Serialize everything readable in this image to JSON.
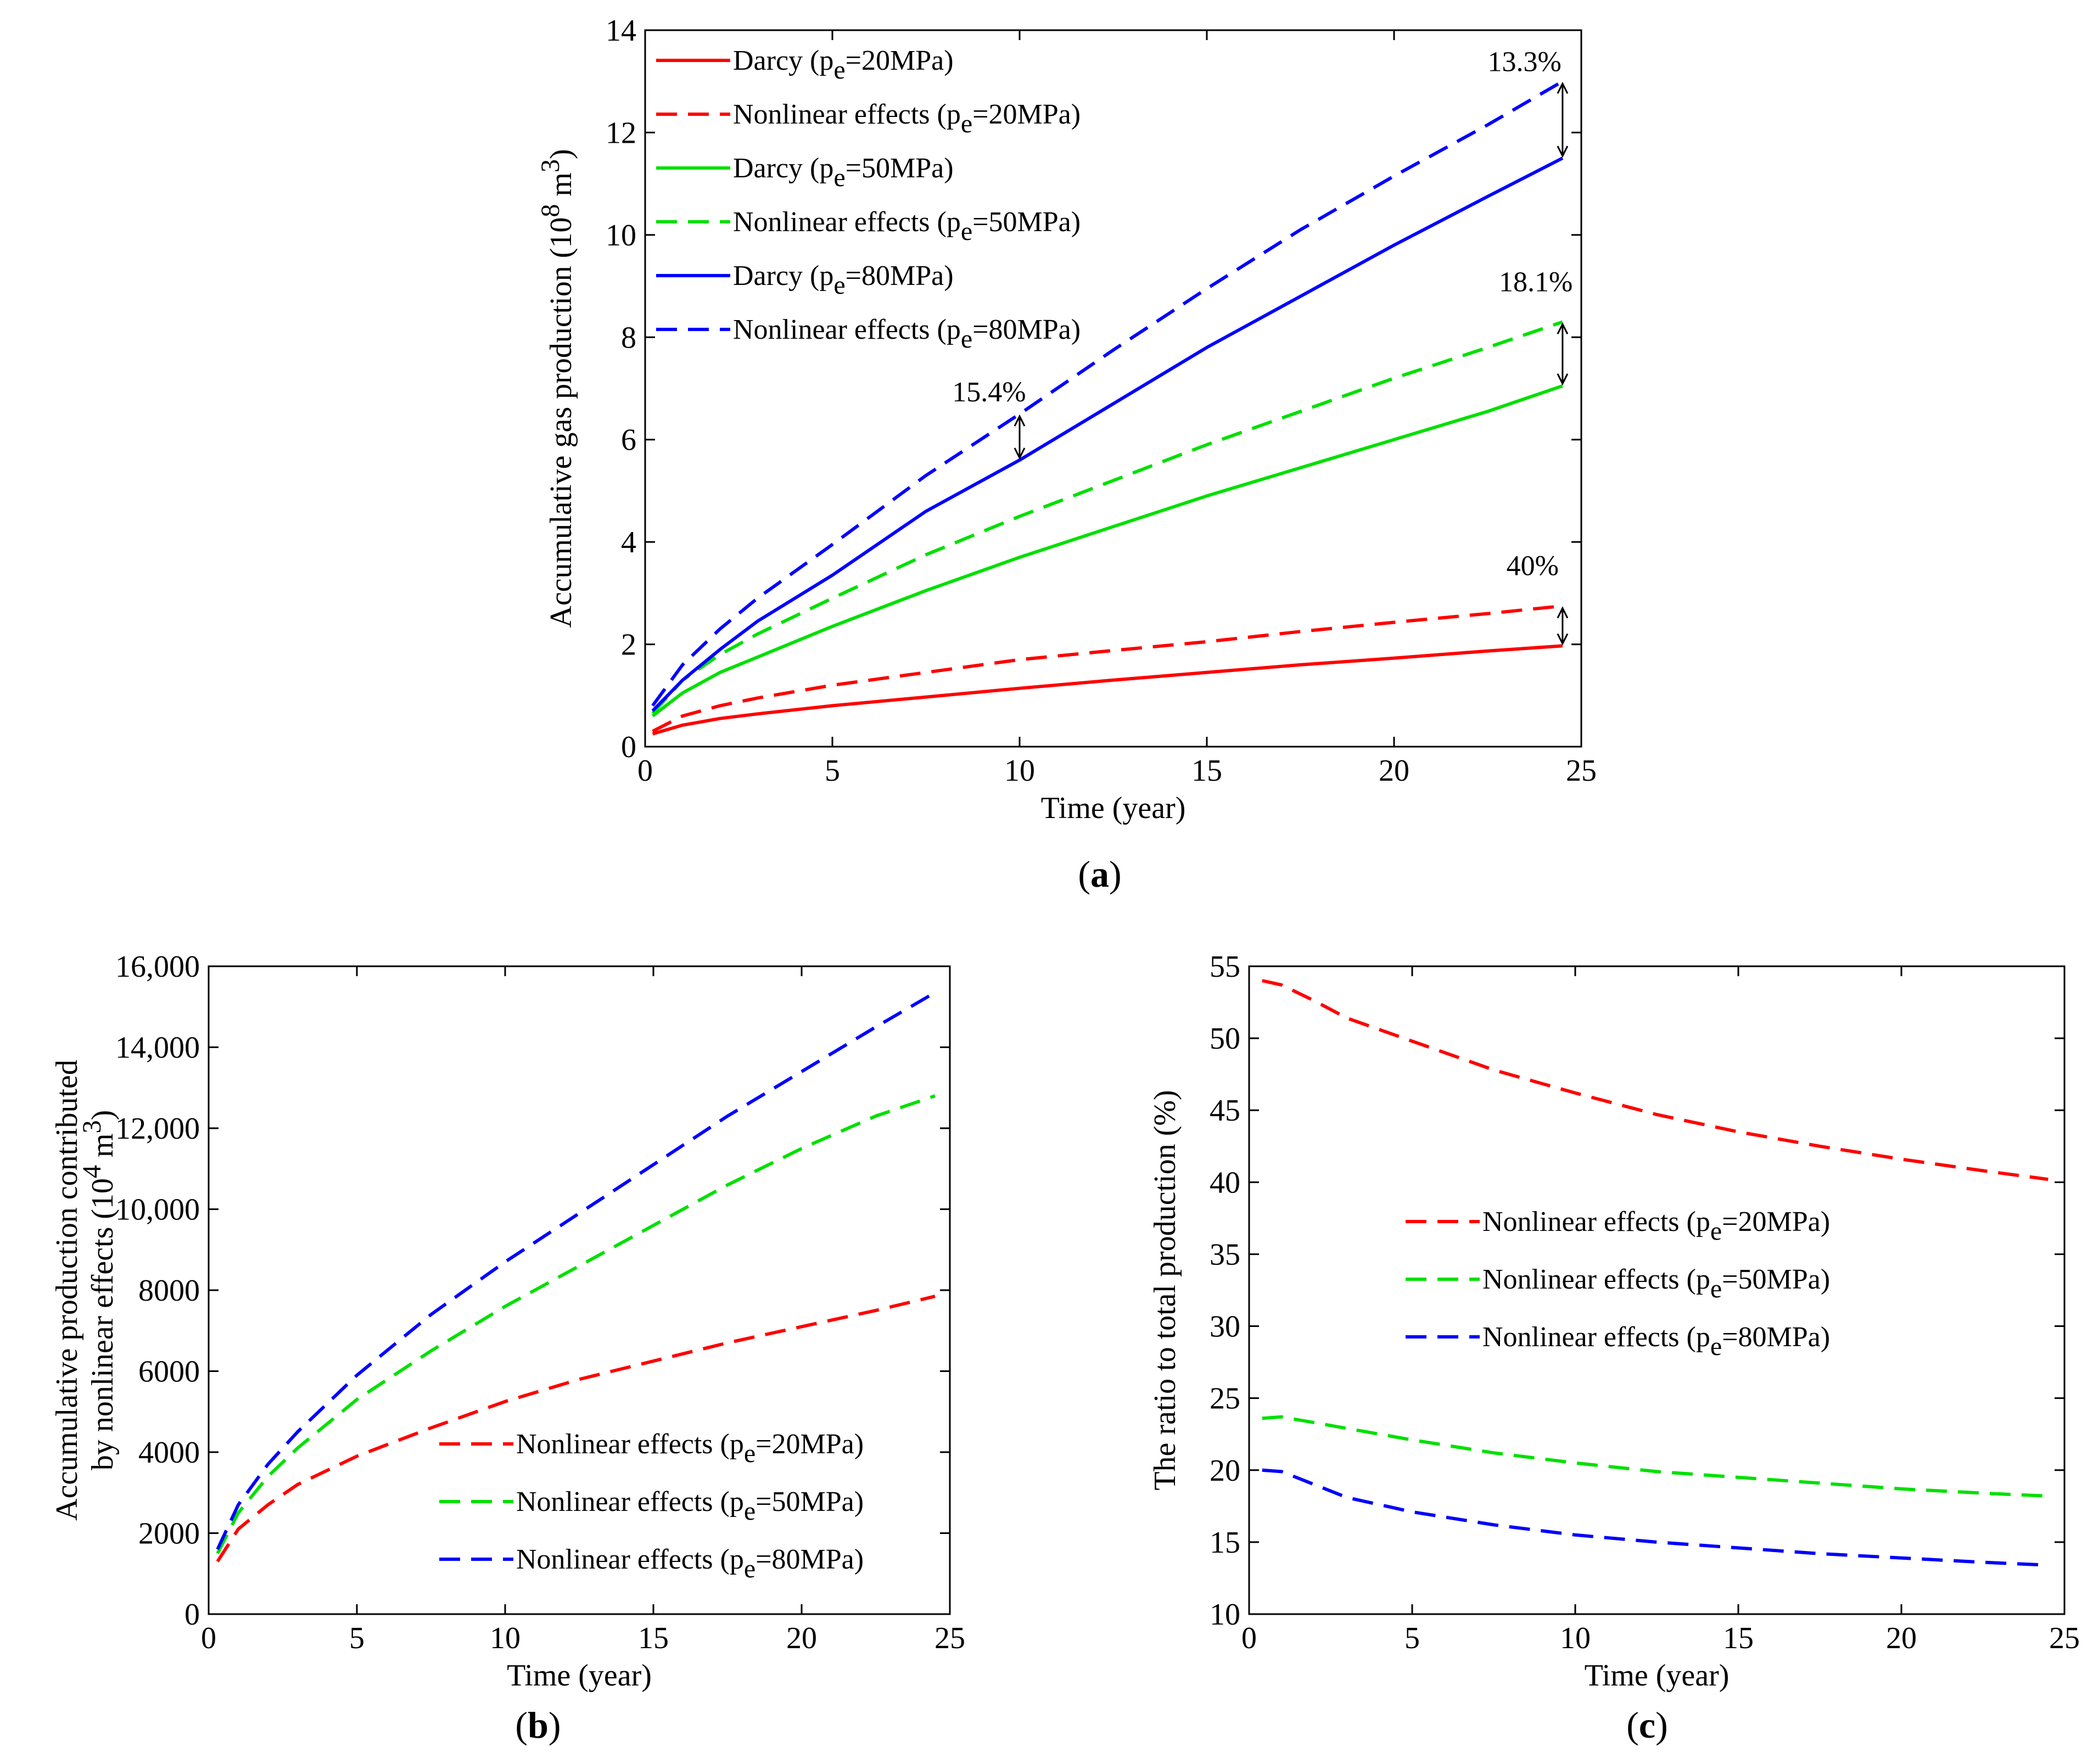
{
  "colors": {
    "red": "#ff0000",
    "green": "#00e000",
    "blue": "#0000ff",
    "axis": "#000000"
  },
  "chart_data": [
    {
      "id": "a",
      "type": "line",
      "panel_label": "a",
      "xlabel": "Time (year)",
      "ylabel": {
        "text": "Accumulative gas production (10",
        "sup1": "8",
        "mid": " m",
        "sup2": "3",
        "end": ")"
      },
      "xlim": [
        0,
        25
      ],
      "ylim": [
        0,
        14
      ],
      "xticks": [
        0,
        5,
        10,
        15,
        20,
        25
      ],
      "xtick_labels": [
        "0",
        "5",
        "10",
        "15",
        "20",
        "25"
      ],
      "yticks": [
        0,
        2,
        4,
        6,
        8,
        10,
        12,
        14
      ],
      "ytick_labels": [
        "0",
        "2",
        "4",
        "6",
        "8",
        "10",
        "12",
        "14"
      ],
      "legend_position": "top-left",
      "series": [
        {
          "name": "Darcy (pe=20MPa)",
          "label": {
            "pre": "Darcy (p",
            "sub": "e",
            "post": "=20MPa)"
          },
          "color": "red",
          "dash": false,
          "x": [
            0.2,
            1,
            2,
            3,
            5,
            7.5,
            10,
            12.5,
            15,
            17.5,
            20,
            22.5,
            24.5
          ],
          "y": [
            0.25,
            0.42,
            0.55,
            0.64,
            0.8,
            0.97,
            1.14,
            1.3,
            1.45,
            1.6,
            1.73,
            1.87,
            1.97
          ]
        },
        {
          "name": "Nonlinear effects (pe=20MPa)",
          "label": {
            "pre": "Nonlinear effects (p",
            "sub": "e",
            "post": "=20MPa)"
          },
          "color": "red",
          "dash": true,
          "x": [
            0.2,
            1,
            2,
            3,
            5,
            7.5,
            10,
            12.5,
            15,
            17.5,
            20,
            22.5,
            24.5
          ],
          "y": [
            0.3,
            0.6,
            0.8,
            0.95,
            1.2,
            1.45,
            1.7,
            1.88,
            2.05,
            2.25,
            2.43,
            2.6,
            2.75
          ]
        },
        {
          "name": "Darcy (pe=50MPa)",
          "label": {
            "pre": "Darcy (p",
            "sub": "e",
            "post": "=50MPa)"
          },
          "color": "green",
          "dash": false,
          "x": [
            0.2,
            1,
            2,
            3,
            5,
            7.5,
            10,
            12.5,
            15,
            17.5,
            20,
            22.5,
            24.5
          ],
          "y": [
            0.6,
            1.05,
            1.45,
            1.75,
            2.35,
            3.05,
            3.7,
            4.3,
            4.9,
            5.45,
            6.0,
            6.55,
            7.05
          ]
        },
        {
          "name": "Nonlinear effects (pe=50MPa)",
          "label": {
            "pre": "Nonlinear effects (p",
            "sub": "e",
            "post": "=50MPa)"
          },
          "color": "green",
          "dash": true,
          "x": [
            0.2,
            1,
            2,
            3,
            5,
            7.5,
            10,
            12.5,
            15,
            17.5,
            20,
            22.5,
            24.5
          ],
          "y": [
            0.65,
            1.3,
            1.8,
            2.2,
            2.9,
            3.75,
            4.5,
            5.2,
            5.9,
            6.55,
            7.2,
            7.8,
            8.3
          ]
        },
        {
          "name": "Darcy (pe=80MPa)",
          "label": {
            "pre": "Darcy (p",
            "sub": "e",
            "post": "=80MPa)"
          },
          "color": "blue",
          "dash": false,
          "x": [
            0.2,
            1,
            2,
            3,
            5,
            7.5,
            10,
            12.5,
            15,
            17.5,
            20,
            22.5,
            24.5
          ],
          "y": [
            0.7,
            1.3,
            1.9,
            2.45,
            3.35,
            4.6,
            5.6,
            6.7,
            7.8,
            8.8,
            9.8,
            10.75,
            11.5
          ]
        },
        {
          "name": "Nonlinear effects (pe=80MPa)",
          "label": {
            "pre": "Nonlinear effects (p",
            "sub": "e",
            "post": "=80MPa)"
          },
          "color": "blue",
          "dash": true,
          "x": [
            0.2,
            1,
            2,
            3,
            5,
            7.5,
            10,
            12.5,
            15,
            17.5,
            20,
            22.5,
            24.5
          ],
          "y": [
            0.8,
            1.6,
            2.3,
            2.9,
            3.95,
            5.3,
            6.5,
            7.75,
            8.95,
            10.1,
            11.15,
            12.15,
            13.0
          ]
        }
      ],
      "annotations": [
        {
          "text": "13.3%",
          "x": 24.5,
          "y_low": 11.5,
          "y_high": 13.0,
          "label_x": 22.5,
          "label_y": 13.2
        },
        {
          "text": "18.1%",
          "x": 24.5,
          "y_low": 7.05,
          "y_high": 8.3,
          "label_x": 22.8,
          "label_y": 8.9
        },
        {
          "text": "15.4%",
          "x": 10.0,
          "y_low": 5.6,
          "y_high": 6.5,
          "label_x": 8.2,
          "label_y": 6.75
        },
        {
          "text": "40%",
          "x": 24.5,
          "y_low": 1.97,
          "y_high": 2.75,
          "label_x": 23.0,
          "label_y": 3.35
        }
      ]
    },
    {
      "id": "b",
      "type": "line",
      "panel_label": "b",
      "xlabel": "Time (year)",
      "ylabel": {
        "line1": "Accumulative production contributed",
        "text": "by nonlinear effects (10",
        "sup1": "4",
        "mid": " m",
        "sup2": "3",
        "end": ")"
      },
      "xlim": [
        0,
        25
      ],
      "ylim": [
        0,
        16000
      ],
      "xticks": [
        0,
        5,
        10,
        15,
        20,
        25
      ],
      "xtick_labels": [
        "0",
        "5",
        "10",
        "15",
        "20",
        "25"
      ],
      "yticks": [
        0,
        2000,
        4000,
        6000,
        8000,
        10000,
        12000,
        14000,
        16000
      ],
      "ytick_labels": [
        "0",
        "2000",
        "4000",
        "6000",
        "8000",
        "10,000",
        "12,000",
        "14,000",
        "16,000"
      ],
      "legend_position": "bottom-right",
      "series": [
        {
          "name": "Nonlinear effects (pe=20MPa)",
          "label": {
            "pre": "Nonlinear effects (p",
            "sub": "e",
            "post": "=20MPa)"
          },
          "color": "red",
          "dash": true,
          "x": [
            0.3,
            1,
            2,
            3,
            5,
            7.5,
            10,
            12.5,
            15,
            17.5,
            20,
            22.5,
            24.5
          ],
          "y": [
            1300,
            2100,
            2700,
            3200,
            3900,
            4600,
            5250,
            5800,
            6250,
            6700,
            7100,
            7500,
            7850
          ]
        },
        {
          "name": "Nonlinear effects (pe=50MPa)",
          "label": {
            "pre": "Nonlinear effects (p",
            "sub": "e",
            "post": "=50MPa)"
          },
          "color": "green",
          "dash": true,
          "x": [
            0.3,
            1,
            2,
            3,
            5,
            7.5,
            10,
            12.5,
            15,
            17.5,
            20,
            22.5,
            24.5
          ],
          "y": [
            1500,
            2500,
            3400,
            4100,
            5300,
            6500,
            7600,
            8600,
            9600,
            10600,
            11500,
            12300,
            12800
          ]
        },
        {
          "name": "Nonlinear effects (pe=80MPa)",
          "label": {
            "pre": "Nonlinear effects (p",
            "sub": "e",
            "post": "=80MPa)"
          },
          "color": "blue",
          "dash": true,
          "x": [
            0.3,
            1,
            2,
            3,
            5,
            7.5,
            10,
            12.5,
            15,
            17.5,
            20,
            22.5,
            24.5
          ],
          "y": [
            1600,
            2700,
            3700,
            4500,
            5900,
            7400,
            8700,
            9900,
            11100,
            12300,
            13400,
            14500,
            15350
          ]
        }
      ]
    },
    {
      "id": "c",
      "type": "line",
      "panel_label": "c",
      "xlabel": "Time (year)",
      "ylabel": {
        "text": "The ratio to total production (%)"
      },
      "xlim": [
        0,
        25
      ],
      "ylim": [
        10,
        55
      ],
      "xticks": [
        0,
        5,
        10,
        15,
        20,
        25
      ],
      "xtick_labels": [
        "0",
        "5",
        "10",
        "15",
        "20",
        "25"
      ],
      "yticks": [
        10,
        15,
        20,
        25,
        30,
        35,
        40,
        45,
        50,
        55
      ],
      "ytick_labels": [
        "10",
        "15",
        "20",
        "25",
        "30",
        "35",
        "40",
        "45",
        "50",
        "55"
      ],
      "legend_position": "center-left",
      "series": [
        {
          "name": "Nonlinear effects (pe=20MPa)",
          "label": {
            "pre": "Nonlinear effects (p",
            "sub": "e",
            "post": "=20MPa)"
          },
          "color": "red",
          "dash": true,
          "x": [
            0.4,
            1,
            2,
            3,
            5,
            7.5,
            10,
            12.5,
            15,
            17.5,
            20,
            22.5,
            24.5
          ],
          "y": [
            54,
            53.7,
            52.6,
            51.4,
            49.8,
            47.8,
            46.2,
            44.7,
            43.5,
            42.5,
            41.6,
            40.8,
            40.2
          ]
        },
        {
          "name": "Nonlinear effects (pe=50MPa)",
          "label": {
            "pre": "Nonlinear effects (p",
            "sub": "e",
            "post": "=50MPa)"
          },
          "color": "green",
          "dash": true,
          "x": [
            0.4,
            1,
            2,
            3,
            5,
            7.5,
            10,
            12.5,
            15,
            17.5,
            20,
            22.5,
            24.5
          ],
          "y": [
            23.6,
            23.7,
            23.3,
            22.9,
            22.1,
            21.2,
            20.5,
            19.9,
            19.5,
            19.1,
            18.7,
            18.4,
            18.2
          ]
        },
        {
          "name": "Nonlinear effects (pe=80MPa)",
          "label": {
            "pre": "Nonlinear effects (p",
            "sub": "e",
            "post": "=80MPa)"
          },
          "color": "blue",
          "dash": true,
          "x": [
            0.4,
            1,
            2,
            3,
            5,
            7.5,
            10,
            12.5,
            15,
            17.5,
            20,
            22.5,
            24.5
          ],
          "y": [
            20,
            19.9,
            19,
            18.1,
            17.1,
            16.2,
            15.5,
            15.0,
            14.6,
            14.2,
            13.9,
            13.6,
            13.4
          ]
        }
      ]
    }
  ]
}
